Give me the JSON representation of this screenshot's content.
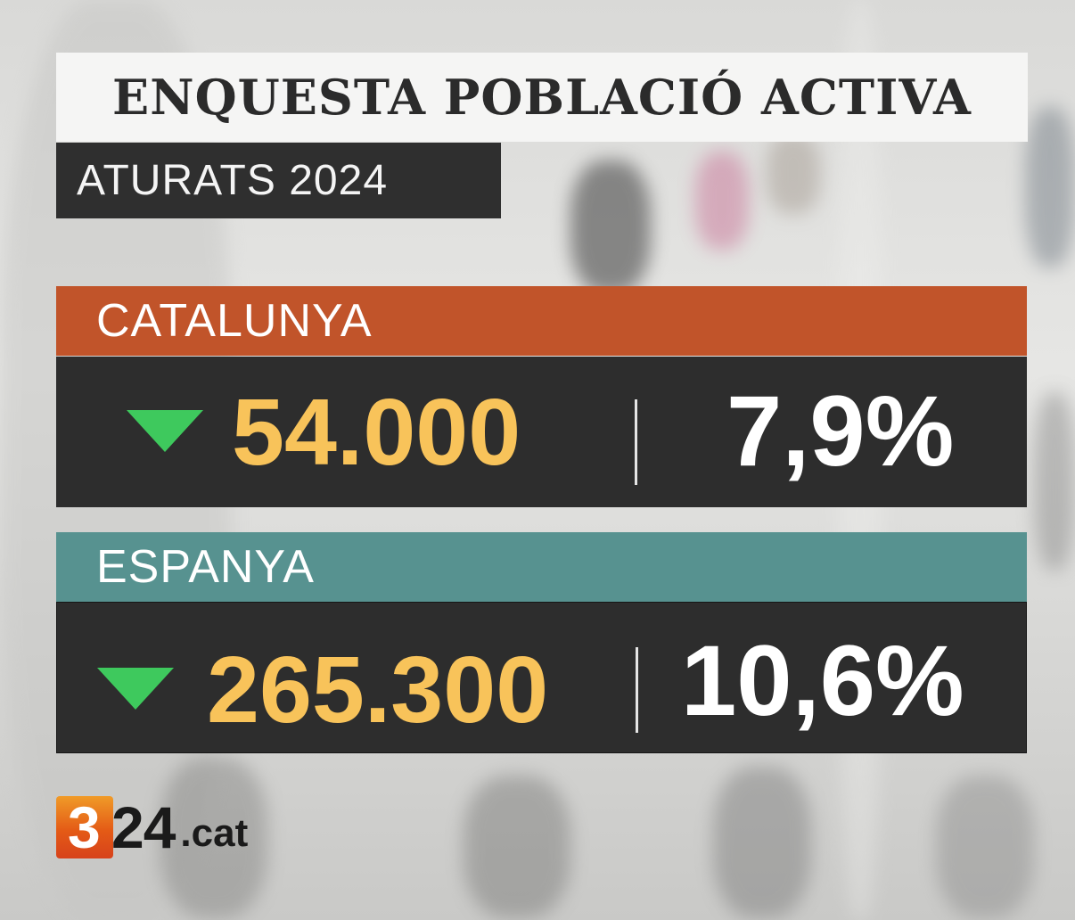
{
  "header": {
    "title": "ENQUESTA POBLACIÓ ACTIVA",
    "subtitle": "ATURATS 2024"
  },
  "regions": [
    {
      "name": "CATALUNYA",
      "trend_icon": "down-triangle-icon",
      "count": "54.000",
      "rate": "7,9%",
      "header_color": "#c1542a"
    },
    {
      "name": "ESPANYA",
      "trend_icon": "down-triangle-icon",
      "count": "265.300",
      "rate": "10,6%",
      "header_color": "#579290"
    }
  ],
  "logo": {
    "badge_digit": "3",
    "digits": "24",
    "suffix": ".cat"
  },
  "colors": {
    "count": "#f8c35a",
    "trend_down": "#3ec95d",
    "panel": "#2d2d2d"
  }
}
